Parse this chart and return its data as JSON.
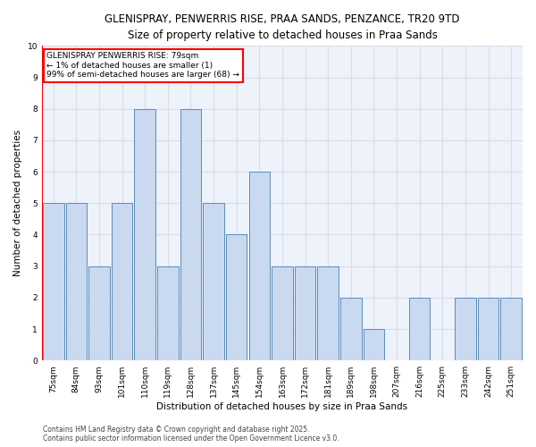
{
  "title_line1": "GLENISPRAY, PENWERRIS RISE, PRAA SANDS, PENZANCE, TR20 9TD",
  "title_line2": "Size of property relative to detached houses in Praa Sands",
  "xlabel": "Distribution of detached houses by size in Praa Sands",
  "ylabel": "Number of detached properties",
  "categories": [
    "75sqm",
    "84sqm",
    "93sqm",
    "101sqm",
    "110sqm",
    "119sqm",
    "128sqm",
    "137sqm",
    "145sqm",
    "154sqm",
    "163sqm",
    "172sqm",
    "181sqm",
    "189sqm",
    "198sqm",
    "207sqm",
    "216sqm",
    "225sqm",
    "233sqm",
    "242sqm",
    "251sqm"
  ],
  "values": [
    5,
    5,
    3,
    5,
    8,
    3,
    8,
    5,
    4,
    6,
    3,
    3,
    3,
    2,
    1,
    0,
    2,
    0,
    2,
    2,
    2
  ],
  "bar_color": "#c9d9f0",
  "bar_edge_color": "#5b8db8",
  "annotation_text": "GLENISPRAY PENWERRIS RISE: 79sqm\n← 1% of detached houses are smaller (1)\n99% of semi-detached houses are larger (68) →",
  "annotation_box_color": "white",
  "annotation_box_edge_color": "red",
  "ylim": [
    0,
    10
  ],
  "yticks": [
    0,
    1,
    2,
    3,
    4,
    5,
    6,
    7,
    8,
    9,
    10
  ],
  "footer_line1": "Contains HM Land Registry data © Crown copyright and database right 2025.",
  "footer_line2": "Contains public sector information licensed under the Open Government Licence v3.0.",
  "fig_bg_color": "#ffffff",
  "plot_bg_color": "#eef2fb",
  "grid_color": "#d8dde8",
  "title_fontsize": 8.5,
  "subtitle_fontsize": 8.5,
  "axis_label_fontsize": 7.5,
  "tick_fontsize": 6.5,
  "annotation_fontsize": 6.5,
  "footer_fontsize": 5.5
}
